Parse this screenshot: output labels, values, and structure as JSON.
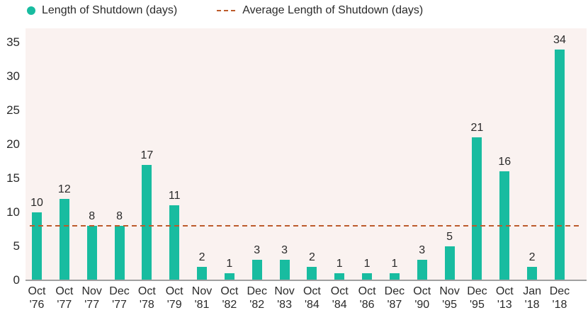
{
  "legend": {
    "series_label": "Length of Shutdown (days)",
    "average_label": "Average Length of Shutdown (days)"
  },
  "colors": {
    "bar": "#18bca0",
    "average_line": "#bc5b2b",
    "plot_background": "#faf2f0",
    "axis_line": "#a0a0a0",
    "text": "#2a2a2a"
  },
  "chart_data": {
    "type": "bar",
    "title": "",
    "series_name": "Length of Shutdown (days)",
    "categories": [
      "Oct '76",
      "Oct '77",
      "Nov '77",
      "Dec '77",
      "Oct '78",
      "Oct '79",
      "Nov '81",
      "Oct '82",
      "Dec '82",
      "Nov '83",
      "Oct '84",
      "Oct '84",
      "Oct '86",
      "Dec '87",
      "Oct '90",
      "Nov '95",
      "Dec '95",
      "Oct '13",
      "Jan '18",
      "Dec '18"
    ],
    "values": [
      10,
      12,
      8,
      8,
      17,
      11,
      2,
      1,
      3,
      3,
      2,
      1,
      1,
      1,
      3,
      5,
      21,
      16,
      2,
      34
    ],
    "bar_labels": [
      10,
      12,
      8,
      8,
      17,
      11,
      2,
      1,
      3,
      3,
      2,
      1,
      1,
      1,
      3,
      5,
      21,
      16,
      2,
      34
    ],
    "average_line": {
      "label": "Average Length of Shutdown (days)",
      "value": 8.05
    },
    "xlabel": "",
    "ylabel": "",
    "ylim": [
      0,
      35
    ],
    "yticks": [
      0,
      5,
      10,
      15,
      20,
      25,
      30,
      35
    ],
    "grid": false,
    "legend_position": "top"
  }
}
